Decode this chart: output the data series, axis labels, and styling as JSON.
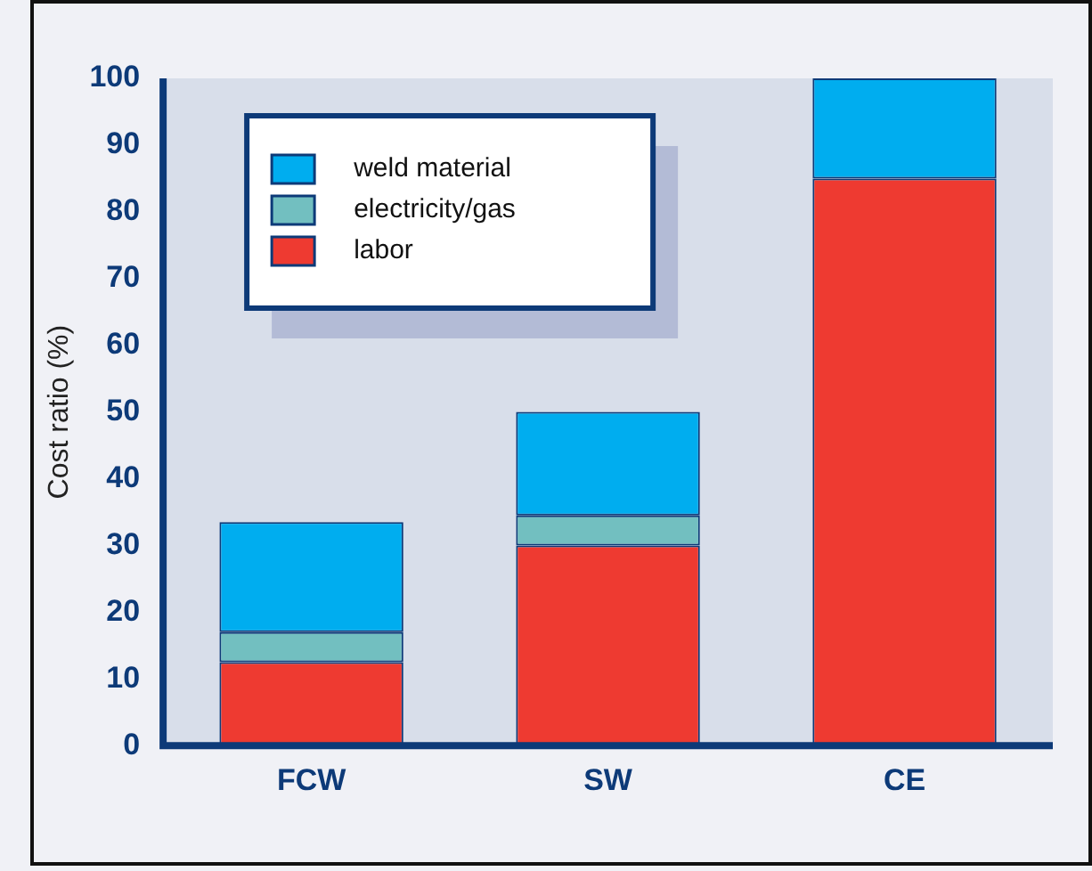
{
  "chart_data": {
    "type": "bar",
    "stacked": true,
    "ylabel": "Cost ratio (%)",
    "categories": [
      "FCW",
      "SW",
      "CE"
    ],
    "series": [
      {
        "name": "labor",
        "color": "#ee3a31",
        "values": [
          12.5,
          30,
          85
        ]
      },
      {
        "name": "electricity/gas",
        "color": "#72bfc0",
        "values": [
          4.5,
          4.5,
          0
        ]
      },
      {
        "name": "weld material",
        "color": "#00adef",
        "values": [
          16.5,
          15.5,
          15
        ]
      }
    ],
    "ylim": [
      0,
      100
    ],
    "yticks": [
      0,
      10,
      20,
      30,
      40,
      50,
      60,
      70,
      80,
      90,
      100
    ],
    "grid": false,
    "legend": "top left"
  }
}
